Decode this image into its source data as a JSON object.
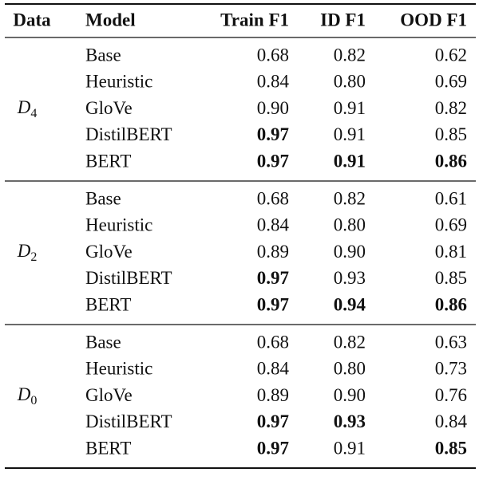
{
  "table": {
    "header": [
      "Data",
      "Model",
      "Train F1",
      "ID F1",
      "OOD F1"
    ],
    "groups": [
      {
        "data": {
          "base": "D",
          "sub": "4"
        },
        "rows": [
          {
            "model": "Base",
            "values": [
              "0.68",
              "0.82",
              "0.62"
            ],
            "bold": [
              false,
              false,
              false
            ]
          },
          {
            "model": "Heuristic",
            "values": [
              "0.84",
              "0.80",
              "0.69"
            ],
            "bold": [
              false,
              false,
              false
            ]
          },
          {
            "model": "GloVe",
            "values": [
              "0.90",
              "0.91",
              "0.82"
            ],
            "bold": [
              false,
              false,
              false
            ]
          },
          {
            "model": "DistilBERT",
            "values": [
              "0.97",
              "0.91",
              "0.85"
            ],
            "bold": [
              true,
              false,
              false
            ]
          },
          {
            "model": "BERT",
            "values": [
              "0.97",
              "0.91",
              "0.86"
            ],
            "bold": [
              true,
              true,
              true
            ]
          }
        ]
      },
      {
        "data": {
          "base": "D",
          "sub": "2"
        },
        "rows": [
          {
            "model": "Base",
            "values": [
              "0.68",
              "0.82",
              "0.61"
            ],
            "bold": [
              false,
              false,
              false
            ]
          },
          {
            "model": "Heuristic",
            "values": [
              "0.84",
              "0.80",
              "0.69"
            ],
            "bold": [
              false,
              false,
              false
            ]
          },
          {
            "model": "GloVe",
            "values": [
              "0.89",
              "0.90",
              "0.81"
            ],
            "bold": [
              false,
              false,
              false
            ]
          },
          {
            "model": "DistilBERT",
            "values": [
              "0.97",
              "0.93",
              "0.85"
            ],
            "bold": [
              true,
              false,
              false
            ]
          },
          {
            "model": "BERT",
            "values": [
              "0.97",
              "0.94",
              "0.86"
            ],
            "bold": [
              true,
              true,
              true
            ]
          }
        ]
      },
      {
        "data": {
          "base": "D",
          "sub": "0"
        },
        "rows": [
          {
            "model": "Base",
            "values": [
              "0.68",
              "0.82",
              "0.63"
            ],
            "bold": [
              false,
              false,
              false
            ]
          },
          {
            "model": "Heuristic",
            "values": [
              "0.84",
              "0.80",
              "0.73"
            ],
            "bold": [
              false,
              false,
              false
            ]
          },
          {
            "model": "GloVe",
            "values": [
              "0.89",
              "0.90",
              "0.76"
            ],
            "bold": [
              false,
              false,
              false
            ]
          },
          {
            "model": "DistilBERT",
            "values": [
              "0.97",
              "0.93",
              "0.84"
            ],
            "bold": [
              true,
              true,
              false
            ]
          },
          {
            "model": "BERT",
            "values": [
              "0.97",
              "0.91",
              "0.85"
            ],
            "bold": [
              true,
              false,
              true
            ]
          }
        ]
      }
    ]
  }
}
